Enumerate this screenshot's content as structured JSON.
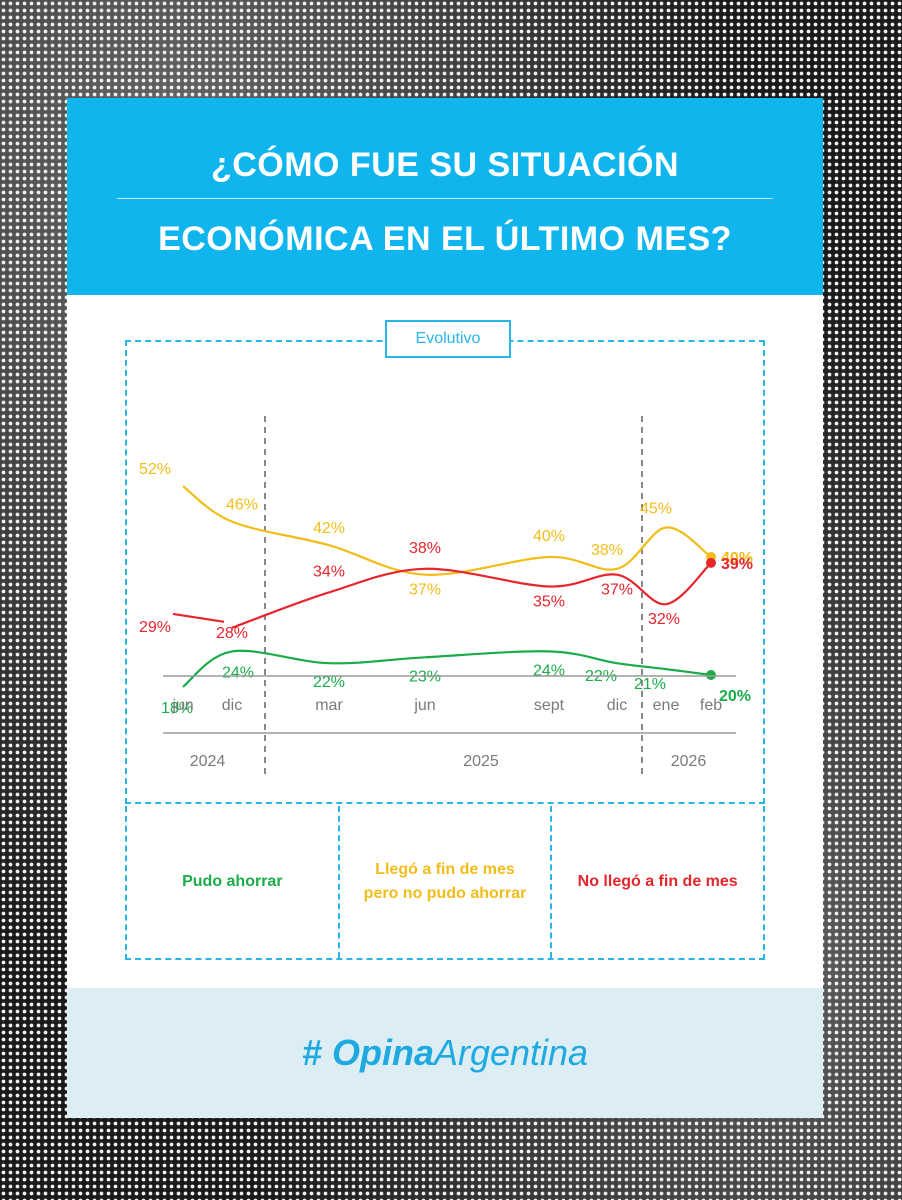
{
  "header": {
    "title_line1": "¿CÓMO FUE SU SITUACIÓN",
    "title_line2": "ECONÓMICA EN EL ÚLTIMO MES?"
  },
  "tag_label": "Evolutivo",
  "footer": {
    "brand_prefix": "#",
    "brand_bold": "Opina",
    "brand_rest": "Argentina"
  },
  "colors": {
    "header_bg": "#0fb5ec",
    "accent": "#29b6e6",
    "green": "#1aac49",
    "yellow": "#f2bd19",
    "red": "#e6252d"
  },
  "chart_data": {
    "type": "line",
    "x": [
      "jun",
      "dic",
      "mar",
      "jun",
      "sept",
      "dic",
      "ene",
      "feb"
    ],
    "years": [
      {
        "label": "2024",
        "from": 0,
        "to": 1
      },
      {
        "label": "2025",
        "from": 2,
        "to": 5
      },
      {
        "label": "2026",
        "from": 6,
        "to": 7
      }
    ],
    "series": [
      {
        "name": "Pudo ahorrar",
        "color": "#1aac49",
        "values": [
          18,
          24,
          22,
          23,
          24,
          22,
          21,
          20
        ]
      },
      {
        "name": "Llegó a fin de mes pero no pudo ahorrar",
        "color": "#f2bd19",
        "values": [
          52,
          46,
          42,
          37,
          40,
          38,
          45,
          40
        ]
      },
      {
        "name": "No llegó a fin de mes",
        "color": "#e6252d",
        "values": [
          29,
          28,
          34,
          38,
          35,
          37,
          32,
          39
        ]
      }
    ],
    "labels": {
      "green": [
        "18%",
        "24%",
        "22%",
        "23%",
        "24%",
        "22%",
        "21%",
        "20%"
      ],
      "yellow": [
        "52%",
        "46%",
        "42%",
        "37%",
        "40%",
        "38%",
        "45%",
        "40%"
      ],
      "red": [
        "29%",
        "28%",
        "34%",
        "38%",
        "35%",
        "37%",
        "32%",
        "39%"
      ]
    },
    "legend": [
      {
        "label": "Pudo ahorrar",
        "color": "#1aac49"
      },
      {
        "label": "Llegó a fin de mes pero no pudo ahorrar",
        "color": "#f2bd19"
      },
      {
        "label": "No llegó a fin de mes",
        "color": "#e6252d"
      }
    ]
  }
}
